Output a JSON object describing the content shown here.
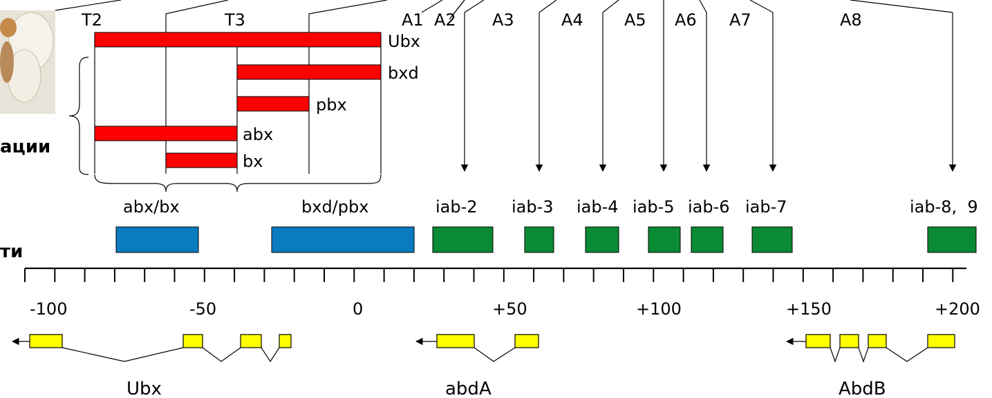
{
  "segments": [
    "T2",
    "T3",
    "A1",
    "A2",
    "A3",
    "A4",
    "A5",
    "A6",
    "A7",
    "A8"
  ],
  "mutations": [
    "Ubx",
    "bxd",
    "pbx",
    "abx",
    "bx"
  ],
  "side_labels": [
    "ации",
    "ти"
  ],
  "region_labels": [
    "abx/bx",
    "bxd/pbx"
  ],
  "iab_labels": [
    "iab-2",
    "iab-3",
    "iab-4",
    "iab-5",
    "iab-6",
    "iab-7",
    "iab-8,  9"
  ],
  "axis_labels": [
    "-100",
    "-50",
    "0",
    "+50",
    "+100",
    "+150",
    "+200"
  ],
  "genes": [
    "Ubx",
    "abdA",
    "AbdB"
  ],
  "colors": {
    "mutation_bar": "#ff0000",
    "regulatory_region": "#0a7bbf",
    "iab_region": "#0a8a33",
    "exon": "#ffff00"
  }
}
